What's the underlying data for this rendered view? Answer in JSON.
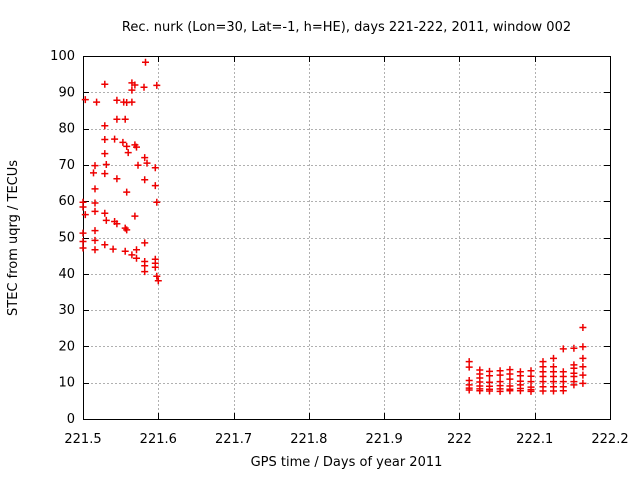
{
  "window": {
    "title": "Rec. nurk (Lon=30, Lat=-1, h=HE), days 221-222, 2011, window 002"
  },
  "colors": {
    "marker": "#ee0000",
    "grid": "#b0b0b0",
    "axis": "#000000",
    "background": "#ffffff",
    "text": "#000000"
  },
  "chart_data": {
    "type": "scatter",
    "title": "Rec. nurk (Lon=30, Lat=-1, h=HE), days 221-222, 2011, window 002",
    "xlabel": "GPS time / Days of year 2011",
    "ylabel": "STEC from uqrg / TECUs",
    "xlim": [
      221.5,
      222.2
    ],
    "ylim": [
      0,
      100
    ],
    "xticks": [
      221.5,
      221.6,
      221.7,
      221.8,
      221.9,
      222,
      222.1,
      222.2
    ],
    "xtick_labels": [
      "221.5",
      "221.6",
      "221.7",
      "221.8",
      "221.9",
      "222",
      "222.1",
      "222.2"
    ],
    "yticks": [
      0,
      10,
      20,
      30,
      40,
      50,
      60,
      70,
      80,
      90,
      100
    ],
    "ytick_labels": [
      "0",
      "10",
      "20",
      "30",
      "40",
      "50",
      "60",
      "70",
      "80",
      "90",
      "100"
    ],
    "grid": true,
    "legend": "none",
    "marker": "plus",
    "series_name": "STEC from uqrg",
    "points": [
      [
        221.583,
        98.3
      ],
      [
        221.529,
        92.2
      ],
      [
        221.565,
        92.6
      ],
      [
        221.565,
        90.6
      ],
      [
        221.581,
        91.4
      ],
      [
        221.569,
        92.0
      ],
      [
        221.598,
        91.9
      ],
      [
        221.503,
        88.0
      ],
      [
        221.518,
        87.3
      ],
      [
        221.545,
        87.8
      ],
      [
        221.554,
        87.3
      ],
      [
        221.558,
        87.2
      ],
      [
        221.565,
        87.3
      ],
      [
        221.545,
        82.6
      ],
      [
        221.556,
        82.6
      ],
      [
        221.529,
        80.8
      ],
      [
        221.529,
        77.0
      ],
      [
        221.542,
        77.1
      ],
      [
        221.553,
        76.2
      ],
      [
        221.558,
        75.1
      ],
      [
        221.569,
        75.5
      ],
      [
        221.571,
        74.9
      ],
      [
        221.529,
        73.1
      ],
      [
        221.56,
        73.4
      ],
      [
        221.582,
        72.0
      ],
      [
        221.516,
        69.8
      ],
      [
        221.531,
        70.1
      ],
      [
        221.573,
        69.9
      ],
      [
        221.585,
        70.5
      ],
      [
        221.596,
        69.2
      ],
      [
        221.514,
        67.8
      ],
      [
        221.529,
        67.6
      ],
      [
        221.545,
        66.2
      ],
      [
        221.582,
        65.9
      ],
      [
        221.596,
        64.3
      ],
      [
        221.516,
        63.4
      ],
      [
        221.558,
        62.5
      ],
      [
        221.598,
        59.7
      ],
      [
        221.5,
        59.7
      ],
      [
        221.5,
        58.4
      ],
      [
        221.503,
        56.3
      ],
      [
        221.516,
        59.5
      ],
      [
        221.516,
        57.2
      ],
      [
        221.529,
        56.7
      ],
      [
        221.531,
        54.7
      ],
      [
        221.542,
        54.4
      ],
      [
        221.569,
        55.9
      ],
      [
        221.545,
        53.8
      ],
      [
        221.556,
        52.6
      ],
      [
        221.5,
        51.2
      ],
      [
        221.516,
        51.9
      ],
      [
        221.558,
        52.1
      ],
      [
        221.5,
        48.9
      ],
      [
        221.516,
        49.2
      ],
      [
        221.5,
        47.1
      ],
      [
        221.516,
        46.6
      ],
      [
        221.529,
        48.0
      ],
      [
        221.54,
        46.8
      ],
      [
        221.556,
        46.2
      ],
      [
        221.565,
        45.2
      ],
      [
        221.571,
        46.6
      ],
      [
        221.571,
        44.3
      ],
      [
        221.582,
        48.5
      ],
      [
        221.582,
        43.4
      ],
      [
        221.582,
        42.2
      ],
      [
        221.596,
        44.0
      ],
      [
        221.596,
        42.9
      ],
      [
        221.596,
        41.8
      ],
      [
        221.582,
        40.6
      ],
      [
        221.598,
        39.3
      ],
      [
        221.6,
        38.1
      ],
      [
        222.013,
        15.8
      ],
      [
        222.013,
        14.3
      ],
      [
        222.013,
        10.6
      ],
      [
        222.013,
        9.4
      ],
      [
        222.013,
        8.5
      ],
      [
        222.013,
        8.0
      ],
      [
        222.027,
        13.5
      ],
      [
        222.027,
        12.4
      ],
      [
        222.027,
        11.3
      ],
      [
        222.027,
        10.2
      ],
      [
        222.027,
        9.1
      ],
      [
        222.027,
        8.3
      ],
      [
        222.027,
        7.8
      ],
      [
        222.04,
        13.1
      ],
      [
        222.04,
        11.9
      ],
      [
        222.04,
        10.1
      ],
      [
        222.04,
        9.0
      ],
      [
        222.04,
        8.2
      ],
      [
        222.04,
        7.7
      ],
      [
        222.054,
        13.3
      ],
      [
        222.054,
        12.1
      ],
      [
        222.054,
        10.3
      ],
      [
        222.054,
        9.2
      ],
      [
        222.054,
        8.3
      ],
      [
        222.054,
        7.6
      ],
      [
        222.067,
        13.6
      ],
      [
        222.067,
        12.4
      ],
      [
        222.067,
        11.0
      ],
      [
        222.067,
        9.1
      ],
      [
        222.067,
        8.2
      ],
      [
        222.067,
        7.8
      ],
      [
        222.081,
        13.0
      ],
      [
        222.081,
        11.9
      ],
      [
        222.081,
        10.4
      ],
      [
        222.081,
        9.4
      ],
      [
        222.081,
        8.4
      ],
      [
        222.081,
        7.8
      ],
      [
        222.095,
        13.3
      ],
      [
        222.095,
        11.8
      ],
      [
        222.095,
        10.3
      ],
      [
        222.095,
        8.8
      ],
      [
        222.095,
        8.1
      ],
      [
        222.095,
        7.6
      ],
      [
        222.111,
        15.8
      ],
      [
        222.111,
        14.4
      ],
      [
        222.111,
        13.0
      ],
      [
        222.111,
        11.7
      ],
      [
        222.111,
        10.3
      ],
      [
        222.111,
        8.9
      ],
      [
        222.111,
        7.7
      ],
      [
        222.125,
        16.7
      ],
      [
        222.125,
        14.4
      ],
      [
        222.125,
        13.0
      ],
      [
        222.125,
        11.7
      ],
      [
        222.125,
        10.3
      ],
      [
        222.125,
        8.9
      ],
      [
        222.125,
        7.7
      ],
      [
        222.138,
        19.3
      ],
      [
        222.138,
        13.0
      ],
      [
        222.138,
        11.7
      ],
      [
        222.138,
        10.3
      ],
      [
        222.138,
        8.9
      ],
      [
        222.138,
        7.8
      ],
      [
        222.152,
        19.5
      ],
      [
        222.152,
        14.9
      ],
      [
        222.152,
        14.0
      ],
      [
        222.152,
        12.6
      ],
      [
        222.152,
        11.7
      ],
      [
        222.152,
        10.3
      ],
      [
        222.152,
        9.4
      ],
      [
        222.164,
        25.2
      ],
      [
        222.164,
        19.9
      ],
      [
        222.164,
        16.7
      ],
      [
        222.164,
        14.4
      ],
      [
        222.164,
        12.1
      ],
      [
        222.164,
        9.8
      ]
    ]
  }
}
